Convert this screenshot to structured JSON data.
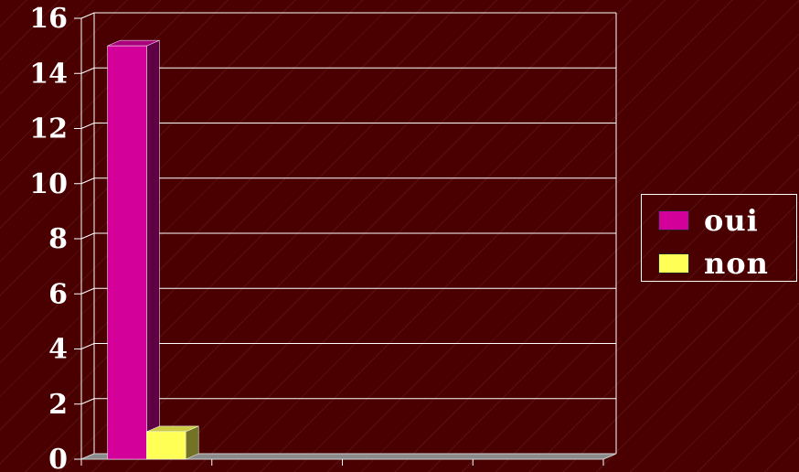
{
  "chart_data": {
    "type": "bar",
    "categories": [
      "",
      "",
      "",
      ""
    ],
    "series": [
      {
        "name": "oui",
        "values": [
          15,
          0,
          0,
          0
        ],
        "color": "#d4009a"
      },
      {
        "name": "non",
        "values": [
          1,
          0,
          0,
          0
        ],
        "color": "#ffff55"
      }
    ],
    "title": "",
    "xlabel": "",
    "ylabel": "",
    "ylim": [
      0,
      16
    ],
    "yticks": [
      "0",
      "2",
      "4",
      "6",
      "8",
      "10",
      "12",
      "14",
      "16"
    ],
    "grid": true,
    "legend_position": "right",
    "background_color": "#4a0000"
  }
}
